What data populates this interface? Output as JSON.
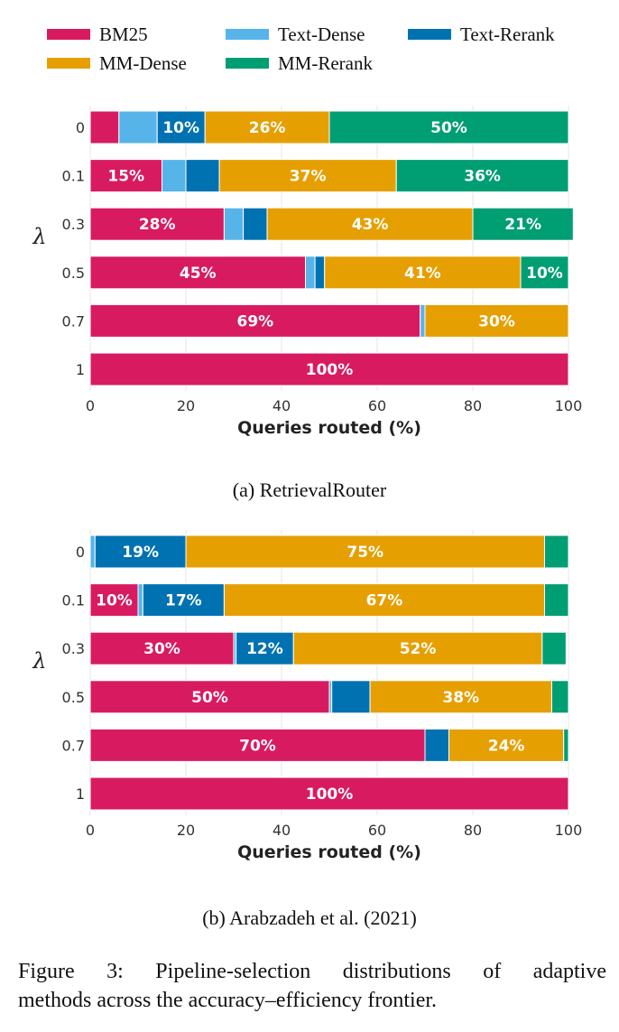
{
  "legend": [
    {
      "name": "BM25",
      "color": "#d81b60"
    },
    {
      "name": "Text-Dense",
      "color": "#56b4e9"
    },
    {
      "name": "Text-Rerank",
      "color": "#0072b2"
    },
    {
      "name": "MM-Dense",
      "color": "#e69f00"
    },
    {
      "name": "MM-Rerank",
      "color": "#009e73"
    }
  ],
  "chart_data": [
    {
      "type": "bar",
      "orientation": "horizontal",
      "stacked": true,
      "caption": "(a) RetrievalRouter",
      "xlabel": "Queries routed (%)",
      "ylabel": "λ",
      "xlim": [
        0,
        100
      ],
      "xticks": [
        "0",
        "20",
        "40",
        "60",
        "80",
        "100"
      ],
      "categories": [
        "0",
        "0.1",
        "0.3",
        "0.5",
        "0.7",
        "1"
      ],
      "series": [
        {
          "name": "BM25",
          "values": [
            6,
            15,
            28,
            45,
            69,
            100
          ]
        },
        {
          "name": "Text-Dense",
          "values": [
            8,
            5,
            4,
            2,
            1,
            0
          ]
        },
        {
          "name": "Text-Rerank",
          "values": [
            10,
            7,
            5,
            2,
            0,
            0
          ]
        },
        {
          "name": "MM-Dense",
          "values": [
            26,
            37,
            43,
            41,
            30,
            0
          ]
        },
        {
          "name": "MM-Rerank",
          "values": [
            50,
            36,
            21,
            10,
            0,
            0
          ]
        }
      ]
    },
    {
      "type": "bar",
      "orientation": "horizontal",
      "stacked": true,
      "caption": "(b) Arabzadeh et al. (2021)",
      "xlabel": "Queries routed (%)",
      "ylabel": "λ",
      "xlim": [
        0,
        100
      ],
      "xticks": [
        "0",
        "20",
        "40",
        "60",
        "80",
        "100"
      ],
      "categories": [
        "0",
        "0.1",
        "0.3",
        "0.5",
        "0.7",
        "1"
      ],
      "series": [
        {
          "name": "BM25",
          "values": [
            0,
            10,
            30,
            50,
            70,
            100
          ]
        },
        {
          "name": "Text-Dense",
          "values": [
            1,
            1,
            0.5,
            0.5,
            0,
            0
          ]
        },
        {
          "name": "Text-Rerank",
          "values": [
            19,
            17,
            12,
            8,
            5,
            0
          ]
        },
        {
          "name": "MM-Dense",
          "values": [
            75,
            67,
            52,
            38,
            24,
            0
          ]
        },
        {
          "name": "MM-Rerank",
          "values": [
            5,
            5,
            5,
            3.5,
            1,
            0
          ]
        }
      ]
    }
  ],
  "figure_caption": {
    "line1": "Figure 3: Pipeline-selection distributions of adaptive",
    "line2": "methods across the accuracy–efficiency frontier."
  }
}
